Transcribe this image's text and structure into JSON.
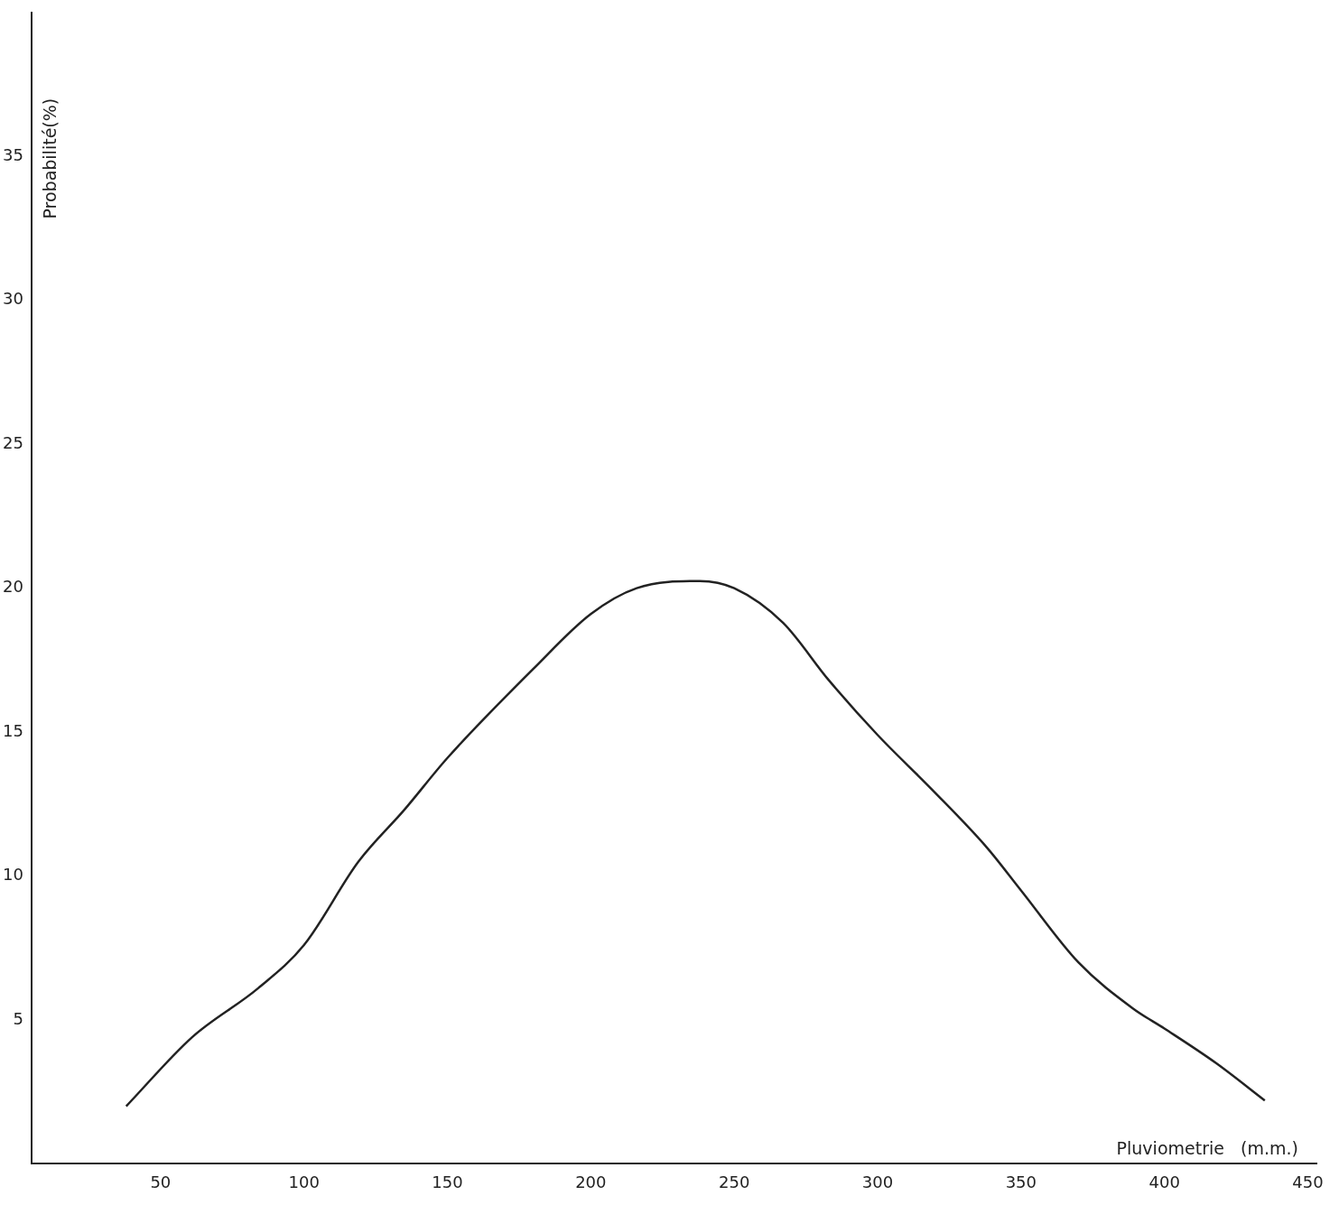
{
  "chart_data": {
    "type": "line",
    "xlabel": "Pluviometrie   (m.m.)",
    "ylabel": "Probabilité(%)",
    "xlim": [
      5,
      453
    ],
    "ylim": [
      0,
      40
    ],
    "xticks": [
      50,
      100,
      150,
      200,
      250,
      300,
      350,
      400,
      450
    ],
    "yticks": [
      5,
      10,
      15,
      20,
      25,
      30,
      35
    ],
    "grid": false,
    "legend": false,
    "marker": "none",
    "line_style": "solid",
    "series": [
      {
        "color": "#222222",
        "x": [
          38,
          61,
          84,
          100,
          119,
          135,
          150,
          180,
          200,
          216,
          238,
          250,
          267,
          283,
          300,
          319,
          338,
          350,
          370,
          389,
          400,
          418,
          435
        ],
        "values": [
          2.0,
          4.4,
          6.1,
          7.6,
          10.5,
          12.3,
          14.1,
          17.2,
          19.1,
          20.0,
          20.25,
          20.0,
          18.8,
          16.8,
          14.9,
          13.0,
          11.0,
          9.5,
          7.0,
          5.4,
          4.7,
          3.5,
          2.2
        ]
      }
    ]
  }
}
